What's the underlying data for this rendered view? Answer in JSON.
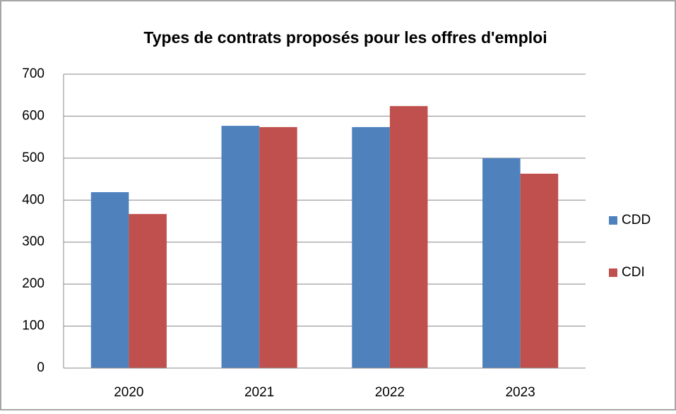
{
  "chart_data": {
    "type": "bar",
    "title": "Types de contrats proposés pour les offres d'emploi",
    "categories": [
      "2020",
      "2021",
      "2022",
      "2023"
    ],
    "series": [
      {
        "name": "CDD",
        "color": "#4f81bd",
        "values": [
          419,
          577,
          574,
          500
        ]
      },
      {
        "name": "CDI",
        "color": "#c0504d",
        "values": [
          367,
          574,
          624,
          463
        ]
      }
    ],
    "ylim": [
      0,
      700
    ],
    "yticks": [
      0,
      100,
      200,
      300,
      400,
      500,
      600,
      700
    ],
    "grid": true,
    "legend": "right"
  }
}
